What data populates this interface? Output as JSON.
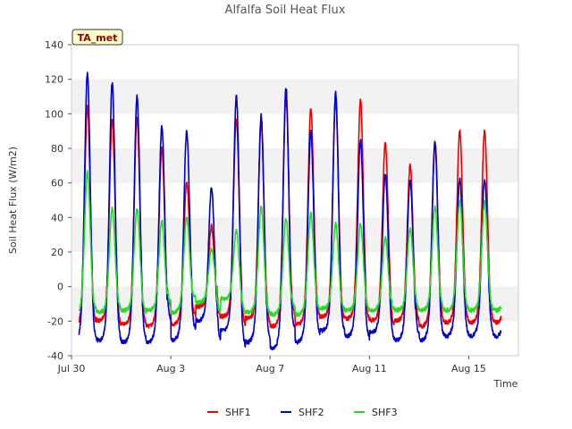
{
  "chart_data": {
    "type": "line",
    "title": "Alfalfa Soil Heat Flux",
    "xlabel": "Time",
    "ylabel": "Soil Heat Flux (W/m2)",
    "ylim": [
      -40,
      140
    ],
    "yticks": [
      -40,
      -20,
      0,
      20,
      40,
      60,
      80,
      100,
      120,
      140
    ],
    "xlim_days": [
      0,
      18
    ],
    "xticks": [
      {
        "day": 0,
        "label": "Jul 30"
      },
      {
        "day": 4,
        "label": "Aug 3"
      },
      {
        "day": 8,
        "label": "Aug 7"
      },
      {
        "day": 12,
        "label": "Aug 11"
      },
      {
        "day": 16,
        "label": "Aug 15"
      }
    ],
    "badge": "TA_met",
    "colors": {
      "SHF1": "#ee0000",
      "SHF2": "#0000cc",
      "SHF3": "#22dd22",
      "badge_bg": "#ffffcc",
      "band": "#f2f2f2"
    },
    "series": [
      {
        "name": "SHF1",
        "color": "#ee0000",
        "day_range": [
          0.3,
          17.3
        ],
        "daily_peaks": [
          104,
          97,
          98,
          80,
          60,
          35,
          97,
          94,
          110,
          103,
          108,
          108,
          83,
          70,
          84,
          90
        ],
        "daily_mins": [
          -20,
          -17,
          -19,
          -20,
          -19,
          -10,
          -15,
          -16,
          -20,
          -19,
          -15,
          -16,
          -17,
          -17,
          -20,
          -18
        ]
      },
      {
        "name": "SHF2",
        "color": "#0000cc",
        "day_range": [
          0.3,
          17.3
        ],
        "daily_peaks": [
          123,
          118,
          110,
          93,
          90,
          57,
          110,
          99,
          115,
          90,
          112,
          85,
          65,
          62,
          83,
          62
        ],
        "daily_mins": [
          -27,
          -27,
          -28,
          -28,
          -27,
          -17,
          -22,
          -28,
          -31,
          -28,
          -22,
          -25,
          -23,
          -27,
          -27,
          -25
        ]
      },
      {
        "name": "SHF3",
        "color": "#22dd22",
        "day_range": [
          0.3,
          17.3
        ],
        "daily_peaks": [
          66,
          45,
          45,
          38,
          40,
          22,
          32,
          46,
          39,
          42,
          36,
          36,
          28,
          34,
          46,
          49
        ],
        "daily_mins": [
          -14,
          -13,
          -12,
          -12,
          -13,
          -8,
          -6,
          -13,
          -14,
          -14,
          -11,
          -12,
          -12,
          -12,
          -12,
          -12
        ]
      }
    ],
    "legend": [
      "SHF1",
      "SHF2",
      "SHF3"
    ],
    "legend_position": "bottom-center",
    "grid": "alternating horizontal bands"
  }
}
